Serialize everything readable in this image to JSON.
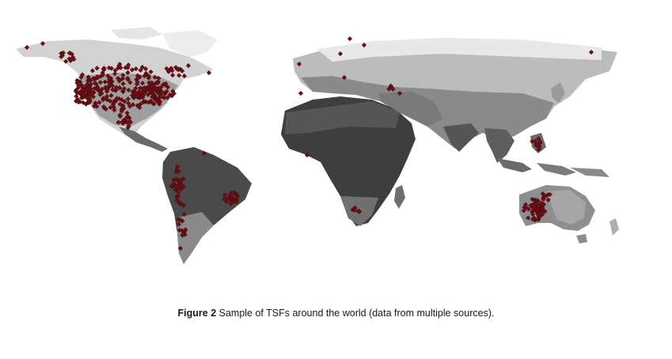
{
  "figure": {
    "label": "Figure 2",
    "caption": "Sample of TSFs around the world (data from multiple sources)."
  },
  "map": {
    "marker_color": "#6b0f14",
    "land_colors": {
      "tropical_dark": "#3c3c3c",
      "mid_gray": "#7a7a7a",
      "light_gray": "#c8c8c8",
      "ice_white": "#ececec"
    }
  }
}
